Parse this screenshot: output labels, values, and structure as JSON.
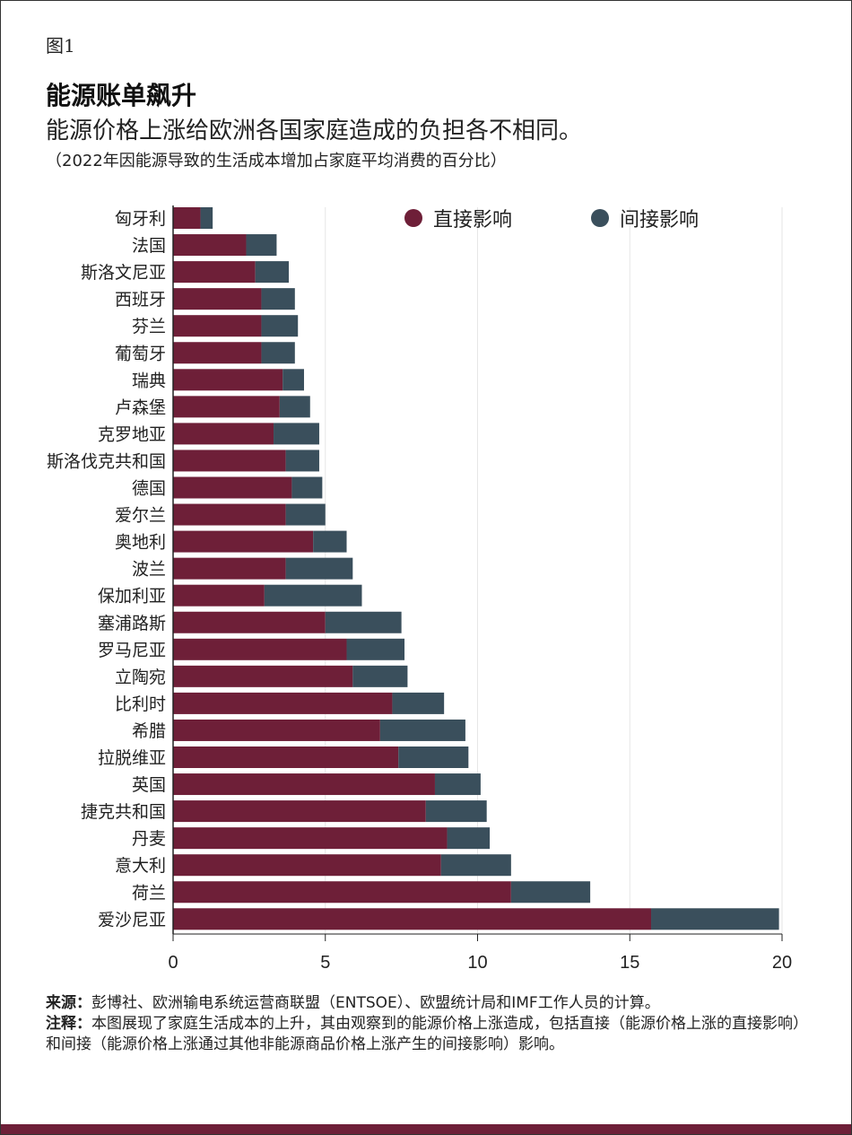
{
  "figure_label": "图1",
  "title": "能源账单飙升",
  "subtitle": "能源价格上涨给欧洲各国家庭造成的负担各不相同。",
  "unit_note": "（2022年因能源导致的生活成本增加占家庭平均消费的百分比）",
  "chart_data": {
    "type": "bar",
    "orientation": "horizontal",
    "stacked": true,
    "categories": [
      "匈牙利",
      "法国",
      "斯洛文尼亚",
      "西班牙",
      "芬兰",
      "葡萄牙",
      "瑞典",
      "卢森堡",
      "克罗地亚",
      "斯洛伐克共和国",
      "德国",
      "爱尔兰",
      "奥地利",
      "波兰",
      "保加利亚",
      "塞浦路斯",
      "罗马尼亚",
      "立陶宛",
      "比利时",
      "希腊",
      "拉脱维亚",
      "英国",
      "捷克共和国",
      "丹麦",
      "意大利",
      "荷兰",
      "爱沙尼亚"
    ],
    "series": [
      {
        "name": "直接影响",
        "color": "#6e1f38",
        "values": [
          0.9,
          2.4,
          2.7,
          2.9,
          2.9,
          2.9,
          3.6,
          3.5,
          3.3,
          3.7,
          3.9,
          3.7,
          4.6,
          3.7,
          3.0,
          5.0,
          5.7,
          5.9,
          7.2,
          6.8,
          7.4,
          8.6,
          8.3,
          9.0,
          8.8,
          11.1,
          15.7
        ]
      },
      {
        "name": "间接影响",
        "color": "#3a4f5c",
        "values": [
          0.4,
          1.0,
          1.1,
          1.1,
          1.2,
          1.1,
          0.7,
          1.0,
          1.5,
          1.1,
          1.0,
          1.3,
          1.1,
          2.2,
          3.2,
          2.5,
          1.9,
          1.8,
          1.7,
          2.8,
          2.3,
          1.5,
          2.0,
          1.4,
          2.3,
          2.6,
          4.2
        ]
      }
    ],
    "xlim": [
      0,
      20
    ],
    "xticks": [
      0,
      5,
      10,
      15,
      20
    ],
    "grid": true,
    "legend": "top-right"
  },
  "footer": {
    "source_label": "来源：",
    "source_text": "彭博社、欧洲输电系统运营商联盟（ENTSOE）、欧盟统计局和IMF工作人员的计算。",
    "note_label": "注释：",
    "note_text": "本图展现了家庭生活成本的上升，其由观察到的能源价格上涨造成，包括直接（能源价格上涨的直接影响）和间接（能源价格上涨通过其他非能源商品价格上涨产生的间接影响）影响。"
  }
}
